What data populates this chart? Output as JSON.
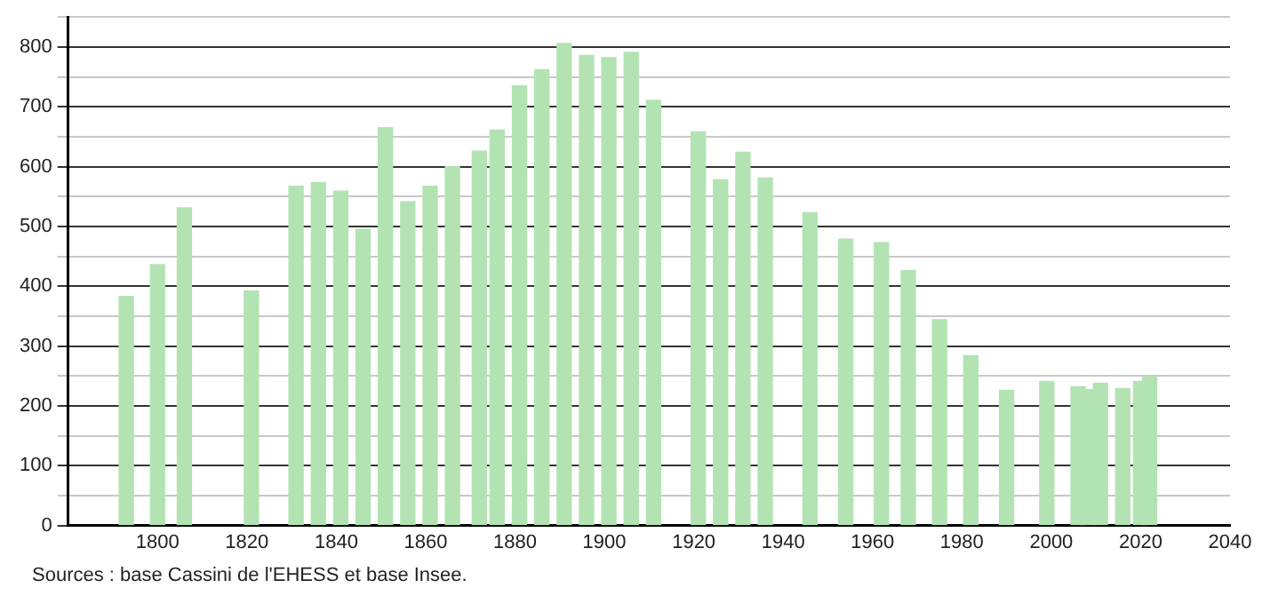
{
  "chart_data": {
    "type": "bar",
    "x": [
      1793,
      1800,
      1806,
      1821,
      1831,
      1836,
      1841,
      1846,
      1851,
      1856,
      1861,
      1866,
      1872,
      1876,
      1881,
      1886,
      1891,
      1896,
      1901,
      1906,
      1911,
      1921,
      1926,
      1931,
      1936,
      1946,
      1954,
      1962,
      1968,
      1975,
      1982,
      1990,
      1999,
      2006,
      2008,
      2011,
      2016,
      2020,
      2022
    ],
    "values": [
      383,
      436,
      531,
      392,
      567,
      573,
      559,
      495,
      665,
      541,
      567,
      600,
      626,
      661,
      735,
      762,
      806,
      786,
      782,
      791,
      711,
      658,
      578,
      624,
      581,
      523,
      479,
      473,
      426,
      344,
      284,
      226,
      241,
      232,
      227,
      238,
      229,
      241,
      249
    ],
    "color": "#b3e3b3",
    "xlim": [
      1780,
      2040
    ],
    "xticks": [
      1800,
      1820,
      1840,
      1860,
      1880,
      1900,
      1920,
      1940,
      1960,
      1980,
      2000,
      2020,
      2040
    ],
    "ylim": [
      0,
      850
    ],
    "yticks": [
      0,
      {
        "value": 50,
        "label": null
      },
      100,
      {
        "value": 150,
        "label": null
      },
      200,
      {
        "value": 250,
        "label": null
      },
      300,
      {
        "value": 350,
        "label": null
      },
      400,
      {
        "value": 450,
        "label": null
      },
      500,
      {
        "value": 550,
        "label": null
      },
      600,
      {
        "value": 650,
        "label": null
      },
      700,
      {
        "value": 750,
        "label": null
      },
      800,
      {
        "value": 850,
        "label": null
      }
    ],
    "grid": "y",
    "legend": false,
    "annotations": [
      "Sources : base Cassini de l'EHESS et base Insee."
    ]
  }
}
